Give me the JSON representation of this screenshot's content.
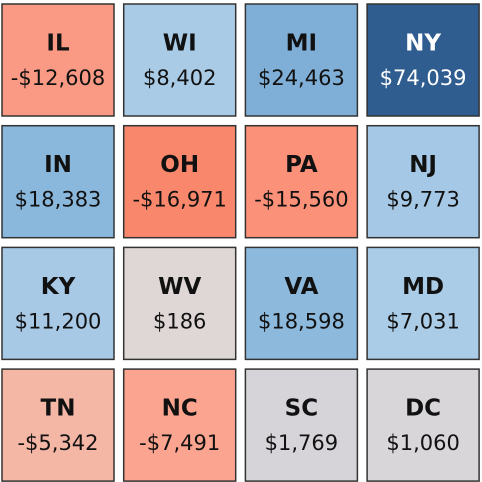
{
  "chart_data": {
    "type": "tilemap",
    "rows": [
      {
        "categories": [
          "IL",
          "WI",
          "MI",
          "NY"
        ],
        "values": [
          -12608,
          8402,
          24463,
          74039
        ],
        "value_labels": [
          "-$12,608",
          "$8,402",
          "$24,463",
          "$74,039"
        ],
        "colors": [
          "#fb9a84",
          "#a9cbe6",
          "#7fafd6",
          "#2f5d8f"
        ]
      },
      {
        "categories": [
          "IN",
          "OH",
          "PA",
          "NJ"
        ],
        "values": [
          18383,
          -16971,
          -15560,
          9773
        ],
        "value_labels": [
          "$18,383",
          "-$16,971",
          "-$15,560",
          "$9,773"
        ],
        "colors": [
          "#8ab7dc",
          "#f8876c",
          "#fb9179",
          "#a4c8e5"
        ]
      },
      {
        "categories": [
          "KY",
          "WV",
          "VA",
          "MD"
        ],
        "values": [
          11200,
          186,
          18598,
          7031
        ],
        "value_labels": [
          "$11,200",
          "$186",
          "$18,598",
          "$7,031"
        ],
        "colors": [
          "#a7c9e5",
          "#dfd6d6",
          "#8db9dc",
          "#abcce6"
        ]
      },
      {
        "categories": [
          "TN",
          "NC",
          "SC",
          "DC"
        ],
        "values": [
          -5342,
          -7491,
          1769,
          1060
        ],
        "value_labels": [
          "-$5,342",
          "-$7,491",
          "$1,769",
          "$1,060"
        ],
        "colors": [
          "#f4b7a6",
          "#fba48f",
          "#d6d4d8",
          "#d8d6d9"
        ]
      }
    ]
  }
}
